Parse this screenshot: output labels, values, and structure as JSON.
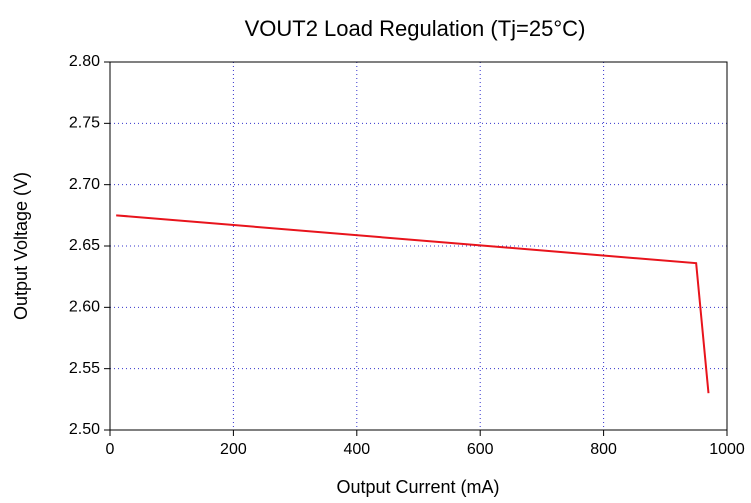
{
  "chart_data": {
    "type": "line",
    "title": "VOUT2 Load Regulation (Tj=25°C)",
    "x_label": "Output Current (mA)",
    "y_label": "Output Voltage (V)",
    "x": [
      10,
      600,
      950,
      970
    ],
    "series": [
      {
        "name": "VOUT2",
        "color": "#e8141c",
        "values": [
          2.675,
          2.6505,
          2.636,
          2.53
        ]
      }
    ],
    "xlim": [
      0,
      1000
    ],
    "xticks": [
      0,
      200,
      400,
      600,
      800,
      1000
    ],
    "ylim": [
      2.5,
      2.8
    ],
    "yticks": [
      {
        "value": 2.5,
        "label": "2.50"
      },
      {
        "value": 2.55,
        "label": "2.55"
      },
      {
        "value": 2.6,
        "label": "2.60"
      },
      {
        "value": 2.65,
        "label": "2.65"
      },
      {
        "value": 2.7,
        "label": "2.70"
      },
      {
        "value": 2.75,
        "label": "2.75"
      },
      {
        "value": 2.8,
        "label": "2.80"
      }
    ],
    "grid": true
  }
}
